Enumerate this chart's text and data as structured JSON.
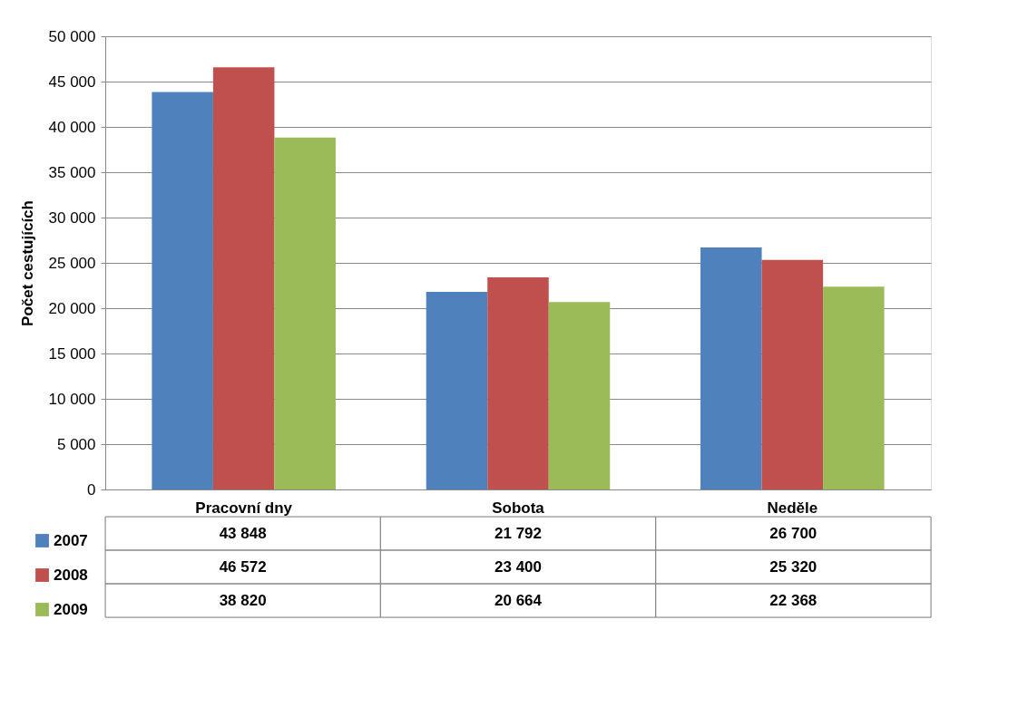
{
  "chart_data": {
    "type": "bar",
    "ylabel": "Počet cestujících",
    "categories": [
      "Pracovní dny",
      "Sobota",
      "Neděle"
    ],
    "series": [
      {
        "name": "2007",
        "color": "#4f81bd",
        "values": [
          43848,
          21792,
          26700
        ],
        "value_labels": [
          "43 848",
          "21 792",
          "26 700"
        ]
      },
      {
        "name": "2008",
        "color": "#c0504d",
        "values": [
          46572,
          23400,
          25320
        ],
        "value_labels": [
          "46 572",
          "23 400",
          "25 320"
        ]
      },
      {
        "name": "2009",
        "color": "#9bbb59",
        "values": [
          38820,
          20664,
          22368
        ],
        "value_labels": [
          "38 820",
          "20 664",
          "22 368"
        ]
      }
    ],
    "ylim": [
      0,
      50000
    ],
    "yticks": [
      {
        "value": 0,
        "label": "0"
      },
      {
        "value": 5000,
        "label": "5 000"
      },
      {
        "value": 10000,
        "label": "10 000"
      },
      {
        "value": 15000,
        "label": "15 000"
      },
      {
        "value": 20000,
        "label": "20 000"
      },
      {
        "value": 25000,
        "label": "25 000"
      },
      {
        "value": 30000,
        "label": "30 000"
      },
      {
        "value": 35000,
        "label": "35 000"
      },
      {
        "value": 40000,
        "label": "40 000"
      },
      {
        "value": 45000,
        "label": "45 000"
      },
      {
        "value": 50000,
        "label": "50 000"
      }
    ],
    "grid": "y",
    "legend": "bottom left"
  }
}
